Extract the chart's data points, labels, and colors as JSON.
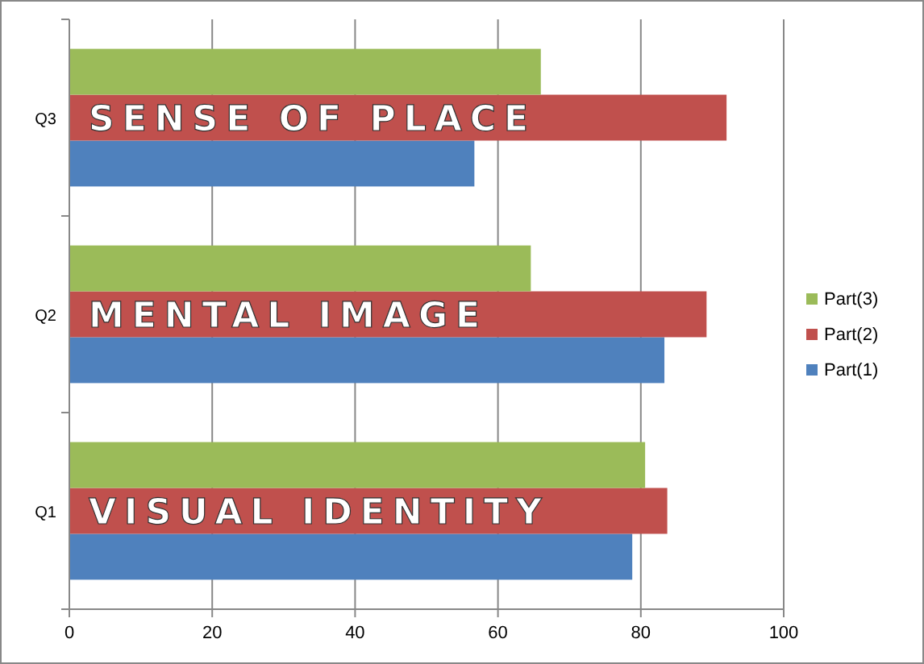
{
  "chart_data": {
    "type": "bar",
    "orientation": "horizontal",
    "categories": [
      "Q3",
      "Q2",
      "Q1"
    ],
    "series": [
      {
        "name": "Part(1)",
        "color": "#4f81bd",
        "values": [
          56.7,
          83.3,
          78.8
        ]
      },
      {
        "name": "Part(2)",
        "color": "#c0504d",
        "values": [
          92,
          89.2,
          83.7
        ]
      },
      {
        "name": "Part(3)",
        "color": "#9bbb59",
        "values": [
          66,
          64.6,
          80.6
        ]
      }
    ],
    "xlim": [
      0,
      100
    ],
    "xticks": [
      0,
      20,
      40,
      60,
      80,
      100
    ],
    "grid": "x",
    "legend": "right",
    "annotations": [
      "SENSE OF PLACE",
      "MENTAL IMAGE",
      "VISUAL IDENTITY"
    ]
  }
}
